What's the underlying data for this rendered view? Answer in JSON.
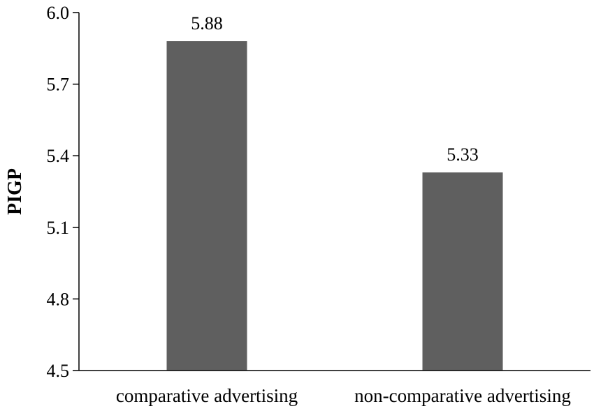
{
  "chart_data": {
    "type": "bar",
    "title": "",
    "xlabel": "",
    "ylabel": "PIGP",
    "categories": [
      "comparative advertising",
      "non-comparative advertising"
    ],
    "values": [
      5.88,
      5.33
    ],
    "data_labels": [
      "5.88",
      "5.33"
    ],
    "ylim": [
      4.5,
      6.0
    ],
    "yticks": [
      4.5,
      4.8,
      5.1,
      5.4,
      5.7,
      6.0
    ],
    "ytick_labels": [
      "4.5",
      "4.8",
      "5.1",
      "5.4",
      "5.7",
      "6.0"
    ],
    "grid": false,
    "legend": "none",
    "bar_color": "#5f5f5f"
  }
}
